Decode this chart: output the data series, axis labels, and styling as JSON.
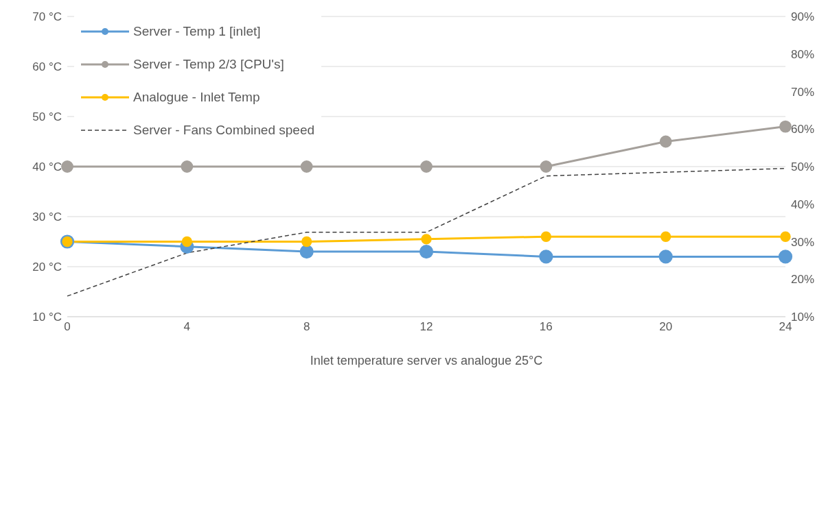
{
  "chart_data": {
    "type": "line",
    "xlabel": "Inlet temperature server vs analogue 25°C",
    "categories": [
      "0",
      "4",
      "8",
      "12",
      "16",
      "20",
      "24"
    ],
    "ylim": [
      10,
      70
    ],
    "yticks": [
      {
        "value": 10,
        "label": "10 °C"
      },
      {
        "value": 20,
        "label": "20 °C"
      },
      {
        "value": 30,
        "label": "30 °C"
      },
      {
        "value": 40,
        "label": "40 °C"
      },
      {
        "value": 50,
        "label": "50 °C"
      },
      {
        "value": 60,
        "label": "60 °C"
      },
      {
        "value": 70,
        "label": "70 °C"
      }
    ],
    "y2lim": [
      10,
      90
    ],
    "y2ticks": [
      {
        "value": 10,
        "label": "10%"
      },
      {
        "value": 20,
        "label": "20%"
      },
      {
        "value": 30,
        "label": "30%"
      },
      {
        "value": 40,
        "label": "40%"
      },
      {
        "value": 50,
        "label": "50%"
      },
      {
        "value": 60,
        "label": "60%"
      },
      {
        "value": 70,
        "label": "70%"
      },
      {
        "value": 80,
        "label": "80%"
      },
      {
        "value": 90,
        "label": "90%"
      }
    ],
    "grid": "y",
    "legend": "top left",
    "marker": "circle",
    "line_style": "solid",
    "series": [
      {
        "name": "Server - Temp 1 [inlet]",
        "color": "#5b9bd5",
        "values": [
          25,
          24,
          23,
          23,
          22,
          22,
          22
        ]
      },
      {
        "name": "Server - Temp 2/3 [CPU's]",
        "color": "#a5a09b",
        "values": [
          40,
          40,
          40,
          40,
          40,
          45,
          48
        ]
      },
      {
        "name": "Analogue - Inlet Temp",
        "color": "#ffc000",
        "values": [
          25,
          25,
          25,
          25.5,
          26,
          26,
          26
        ]
      },
      {
        "name": "Server - Fans Combined speed",
        "color": "#404040",
        "axis": "y2",
        "marker": "none",
        "line_style": "dashed",
        "values": [
          15.5,
          27,
          32.5,
          32.5,
          47.5,
          48.5,
          49.5
        ]
      }
    ]
  }
}
